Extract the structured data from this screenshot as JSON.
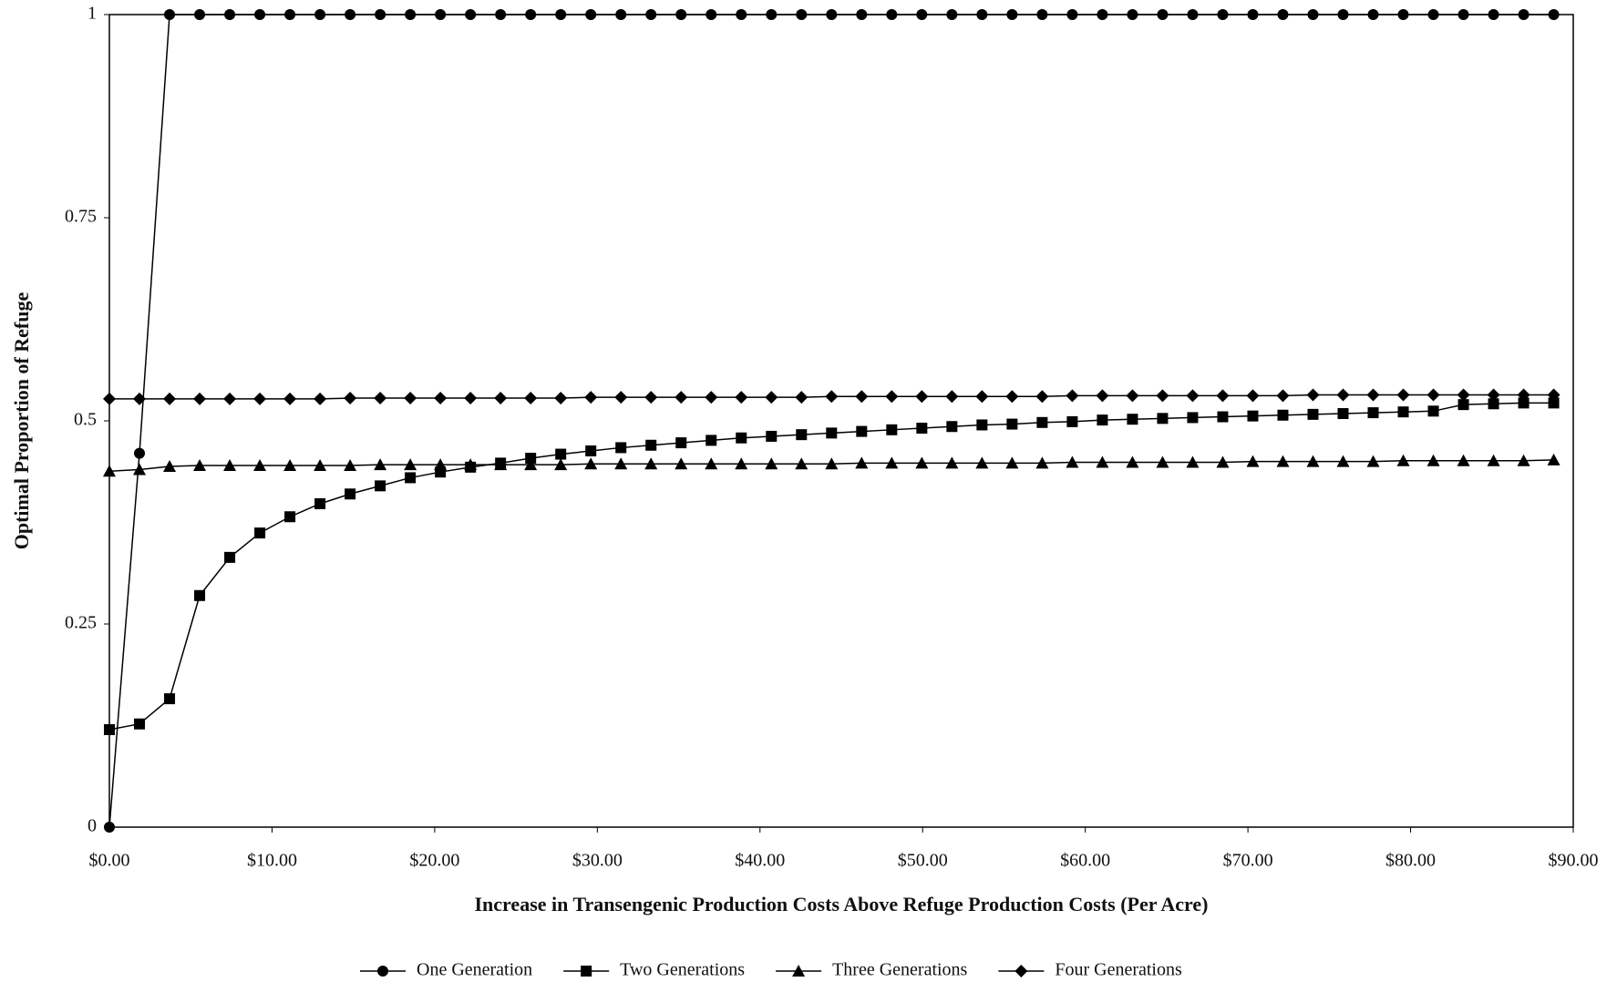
{
  "chart_data": {
    "type": "line",
    "x_label": "Increase in Transengenic Production Costs Above Refuge Production Costs (Per Acre)",
    "y_label": "Optimal Proportion of Refuge",
    "x": [
      0,
      1.85,
      3.7,
      5.55,
      7.4,
      9.25,
      11.1,
      12.95,
      14.8,
      16.65,
      18.5,
      20.35,
      22.2,
      24.05,
      25.9,
      27.75,
      29.6,
      31.45,
      33.3,
      35.15,
      37,
      38.85,
      40.7,
      42.55,
      44.4,
      46.25,
      48.1,
      49.95,
      51.8,
      53.65,
      55.5,
      57.35,
      59.2,
      61.05,
      62.9,
      64.75,
      66.6,
      68.45,
      70.3,
      72.15,
      74,
      75.85,
      77.7,
      79.55,
      81.4,
      83.25,
      85.1,
      86.95,
      88.8
    ],
    "series": [
      {
        "name": "One Generation",
        "marker": "circle",
        "color": "#000000",
        "values": [
          0,
          0.46,
          1,
          1,
          1,
          1,
          1,
          1,
          1,
          1,
          1,
          1,
          1,
          1,
          1,
          1,
          1,
          1,
          1,
          1,
          1,
          1,
          1,
          1,
          1,
          1,
          1,
          1,
          1,
          1,
          1,
          1,
          1,
          1,
          1,
          1,
          1,
          1,
          1,
          1,
          1,
          1,
          1,
          1,
          1,
          1,
          1,
          1,
          1
        ]
      },
      {
        "name": "Two Generations",
        "marker": "square",
        "color": "#000000",
        "values": [
          0.12,
          0.127,
          0.158,
          0.285,
          0.332,
          0.362,
          0.382,
          0.398,
          0.41,
          0.42,
          0.43,
          0.437,
          0.443,
          0.448,
          0.454,
          0.459,
          0.463,
          0.467,
          0.47,
          0.473,
          0.476,
          0.479,
          0.481,
          0.483,
          0.485,
          0.487,
          0.489,
          0.491,
          0.493,
          0.495,
          0.496,
          0.498,
          0.499,
          0.501,
          0.502,
          0.503,
          0.504,
          0.505,
          0.506,
          0.507,
          0.508,
          0.509,
          0.51,
          0.511,
          0.512,
          0.52,
          0.521,
          0.522,
          0.522
        ]
      },
      {
        "name": "Three Generations",
        "marker": "triangle",
        "color": "#000000",
        "values": [
          0.438,
          0.44,
          0.444,
          0.445,
          0.445,
          0.445,
          0.445,
          0.445,
          0.445,
          0.446,
          0.446,
          0.446,
          0.446,
          0.446,
          0.446,
          0.446,
          0.447,
          0.447,
          0.447,
          0.447,
          0.447,
          0.447,
          0.447,
          0.447,
          0.447,
          0.448,
          0.448,
          0.448,
          0.448,
          0.448,
          0.448,
          0.448,
          0.449,
          0.449,
          0.449,
          0.449,
          0.449,
          0.449,
          0.45,
          0.45,
          0.45,
          0.45,
          0.45,
          0.451,
          0.451,
          0.451,
          0.451,
          0.451,
          0.452
        ]
      },
      {
        "name": "Four Generations",
        "marker": "diamond",
        "color": "#000000",
        "values": [
          0.527,
          0.527,
          0.527,
          0.527,
          0.527,
          0.527,
          0.527,
          0.527,
          0.528,
          0.528,
          0.528,
          0.528,
          0.528,
          0.528,
          0.528,
          0.528,
          0.529,
          0.529,
          0.529,
          0.529,
          0.529,
          0.529,
          0.529,
          0.529,
          0.53,
          0.53,
          0.53,
          0.53,
          0.53,
          0.53,
          0.53,
          0.53,
          0.531,
          0.531,
          0.531,
          0.531,
          0.531,
          0.531,
          0.531,
          0.531,
          0.532,
          0.532,
          0.532,
          0.532,
          0.532,
          0.532,
          0.532,
          0.532,
          0.532
        ]
      }
    ],
    "xlim": [
      0,
      90
    ],
    "xticks": [
      {
        "value": 0,
        "label": "$0.00"
      },
      {
        "value": 10,
        "label": "$10.00"
      },
      {
        "value": 20,
        "label": "$20.00"
      },
      {
        "value": 30,
        "label": "$30.00"
      },
      {
        "value": 40,
        "label": "$40.00"
      },
      {
        "value": 50,
        "label": "$50.00"
      },
      {
        "value": 60,
        "label": "$60.00"
      },
      {
        "value": 70,
        "label": "$70.00"
      },
      {
        "value": 80,
        "label": "$80.00"
      },
      {
        "value": 90,
        "label": "$90.00"
      }
    ],
    "ylim": [
      0,
      1
    ],
    "yticks": [
      0,
      0.25,
      0.5,
      0.75,
      1
    ],
    "grid": false,
    "legend": "bottom"
  }
}
